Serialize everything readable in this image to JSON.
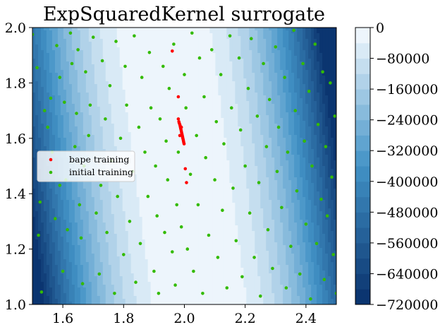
{
  "chart_data": {
    "type": "heatmap",
    "title": "ExpSquaredKernel surrogate",
    "xlim": [
      1.5,
      2.5
    ],
    "ylim": [
      1.0,
      2.0
    ],
    "x_ticks": [
      1.6,
      1.8,
      2.0,
      2.2,
      2.4
    ],
    "x_tick_labels": [
      "1.6",
      "1.8",
      "2.0",
      "2.2",
      "2.4"
    ],
    "y_ticks": [
      1.0,
      1.2,
      1.4,
      1.6,
      1.8,
      2.0
    ],
    "y_tick_labels": [
      "1.0",
      "1.2",
      "1.4",
      "1.6",
      "1.8",
      "2.0"
    ],
    "colormap": "Blues_r",
    "colorbar": {
      "range": [
        -720000,
        0
      ],
      "ticks": [
        0,
        -80000,
        -160000,
        -240000,
        -320000,
        -400000,
        -480000,
        -560000,
        -640000,
        -720000
      ],
      "tick_labels": [
        "0",
        "−80000",
        "−160000",
        "−240000",
        "−320000",
        "−400000",
        "−480000",
        "−560000",
        "−640000",
        "−720000"
      ],
      "levels": 18
    },
    "legend_position": "center-left",
    "colors": {
      "bape": "#ff0000",
      "initial": "#33bb00",
      "blue_dark": "#08306b",
      "blue_light": "#f7fbff"
    },
    "series": [
      {
        "name": "bape training",
        "type": "scatter",
        "points": [
          [
            1.96,
            1.915
          ],
          [
            1.98,
            1.75
          ],
          [
            1.98,
            1.67
          ],
          [
            1.982,
            1.66
          ],
          [
            1.983,
            1.655
          ],
          [
            1.985,
            1.65
          ],
          [
            1.986,
            1.645
          ],
          [
            1.987,
            1.64
          ],
          [
            1.988,
            1.635
          ],
          [
            1.989,
            1.63
          ],
          [
            1.99,
            1.625
          ],
          [
            1.991,
            1.62
          ],
          [
            1.992,
            1.615
          ],
          [
            1.993,
            1.61
          ],
          [
            1.994,
            1.605
          ],
          [
            1.995,
            1.6
          ],
          [
            1.996,
            1.595
          ],
          [
            1.997,
            1.59
          ],
          [
            1.998,
            1.585
          ],
          [
            1.999,
            1.58
          ],
          [
            1.985,
            1.61
          ],
          [
            1.99,
            1.64
          ],
          [
            2.003,
            1.49
          ],
          [
            2.007,
            1.44
          ]
        ]
      },
      {
        "name": "initial training",
        "type": "scatter",
        "points": [
          [
            1.5,
            1.975
          ],
          [
            1.515,
            1.855
          ],
          [
            1.52,
            1.25
          ],
          [
            1.525,
            1.37
          ],
          [
            1.53,
            1.045
          ],
          [
            1.54,
            1.7
          ],
          [
            1.55,
            1.64
          ],
          [
            1.56,
            1.745
          ],
          [
            1.565,
            1.55
          ],
          [
            1.575,
            1.31
          ],
          [
            1.58,
            1.935
          ],
          [
            1.59,
            1.43
          ],
          [
            1.59,
            1.82
          ],
          [
            1.6,
            1.12
          ],
          [
            1.605,
            1.73
          ],
          [
            1.61,
            1.45
          ],
          [
            1.615,
            1.27
          ],
          [
            1.625,
            1.98
          ],
          [
            1.63,
            1.87
          ],
          [
            1.64,
            1.57
          ],
          [
            1.645,
            1.69
          ],
          [
            1.65,
            1.92
          ],
          [
            1.655,
            1.36
          ],
          [
            1.66,
            1.24
          ],
          [
            1.665,
            1.075
          ],
          [
            1.67,
            1.5
          ],
          [
            1.675,
            1.84
          ],
          [
            1.685,
            1.61
          ],
          [
            1.69,
            1.72
          ],
          [
            1.7,
            1.965
          ],
          [
            1.71,
            1.33
          ],
          [
            1.72,
            1.11
          ],
          [
            1.725,
            1.43
          ],
          [
            1.73,
            1.88
          ],
          [
            1.74,
            1.67
          ],
          [
            1.745,
            1.26
          ],
          [
            1.755,
            1.79
          ],
          [
            1.76,
            1.52
          ],
          [
            1.77,
            1.04
          ],
          [
            1.775,
            1.95
          ],
          [
            1.78,
            1.39
          ],
          [
            1.79,
            1.6
          ],
          [
            1.8,
            1.18
          ],
          [
            1.805,
            1.86
          ],
          [
            1.81,
            1.72
          ],
          [
            1.82,
            1.3
          ],
          [
            1.83,
            1.48
          ],
          [
            1.835,
            1.97
          ],
          [
            1.84,
            1.08
          ],
          [
            1.85,
            1.64
          ],
          [
            1.855,
            1.22
          ],
          [
            1.86,
            1.82
          ],
          [
            1.87,
            1.55
          ],
          [
            1.88,
            1.39
          ],
          [
            1.885,
            1.91
          ],
          [
            1.89,
            1.71
          ],
          [
            1.9,
            1.12
          ],
          [
            1.905,
            1.5
          ],
          [
            1.91,
            1.32
          ],
          [
            1.915,
            1.04
          ],
          [
            1.92,
            1.67
          ],
          [
            1.93,
            1.86
          ],
          [
            1.935,
            1.26
          ],
          [
            1.94,
            1.59
          ],
          [
            1.945,
            1.45
          ],
          [
            1.95,
            1.78
          ],
          [
            1.96,
            1.19
          ],
          [
            1.965,
            1.94
          ],
          [
            1.97,
            1.07
          ],
          [
            1.975,
            1.36
          ],
          [
            1.98,
            1.55
          ],
          [
            1.99,
            1.28
          ],
          [
            2.0,
            1.83
          ],
          [
            2.005,
            1.71
          ],
          [
            2.01,
            1.2
          ],
          [
            2.02,
            1.47
          ],
          [
            2.025,
            1.98
          ],
          [
            2.03,
            1.12
          ],
          [
            2.04,
            1.61
          ],
          [
            2.045,
            1.36
          ],
          [
            2.05,
            1.89
          ],
          [
            2.06,
            1.04
          ],
          [
            2.065,
            1.75
          ],
          [
            2.07,
            1.53
          ],
          [
            2.08,
            1.25
          ],
          [
            2.09,
            1.92
          ],
          [
            2.1,
            1.45
          ],
          [
            2.105,
            1.66
          ],
          [
            2.11,
            1.17
          ],
          [
            2.12,
            1.83
          ],
          [
            2.125,
            1.34
          ],
          [
            2.13,
            1.58
          ],
          [
            2.14,
            1.06
          ],
          [
            2.15,
            1.97
          ],
          [
            2.155,
            1.71
          ],
          [
            2.16,
            1.42
          ],
          [
            2.17,
            1.23
          ],
          [
            2.18,
            1.89
          ],
          [
            2.185,
            1.63
          ],
          [
            2.19,
            1.1
          ],
          [
            2.2,
            1.5
          ],
          [
            2.21,
            1.78
          ],
          [
            2.215,
            1.33
          ],
          [
            2.22,
            1.96
          ],
          [
            2.23,
            1.17
          ],
          [
            2.24,
            1.68
          ],
          [
            2.245,
            1.44
          ],
          [
            2.25,
            1.03
          ],
          [
            2.26,
            1.87
          ],
          [
            2.27,
            1.57
          ],
          [
            2.275,
            1.27
          ],
          [
            2.28,
            1.74
          ],
          [
            2.29,
            1.13
          ],
          [
            2.3,
            1.93
          ],
          [
            2.305,
            1.48
          ],
          [
            2.31,
            1.64
          ],
          [
            2.32,
            1.35
          ],
          [
            2.33,
            1.82
          ],
          [
            2.335,
            1.06
          ],
          [
            2.34,
            1.55
          ],
          [
            2.35,
            1.21
          ],
          [
            2.36,
            1.99
          ],
          [
            2.365,
            1.7
          ],
          [
            2.37,
            1.41
          ],
          [
            2.38,
            1.11
          ],
          [
            2.39,
            1.87
          ],
          [
            2.395,
            1.59
          ],
          [
            2.4,
            1.29
          ],
          [
            2.41,
            1.77
          ],
          [
            2.415,
            1.02
          ],
          [
            2.42,
            1.5
          ],
          [
            2.43,
            1.94
          ],
          [
            2.435,
            1.22
          ],
          [
            2.44,
            1.65
          ],
          [
            2.45,
            1.38
          ],
          [
            2.455,
            1.84
          ],
          [
            2.46,
            1.09
          ],
          [
            2.465,
            1.57
          ],
          [
            2.47,
            1.32
          ],
          [
            2.48,
            1.8
          ],
          [
            2.485,
            1.46
          ],
          [
            2.49,
            1.18
          ],
          [
            2.495,
            1.68
          ],
          [
            2.5,
            1.04
          ]
        ]
      }
    ]
  }
}
